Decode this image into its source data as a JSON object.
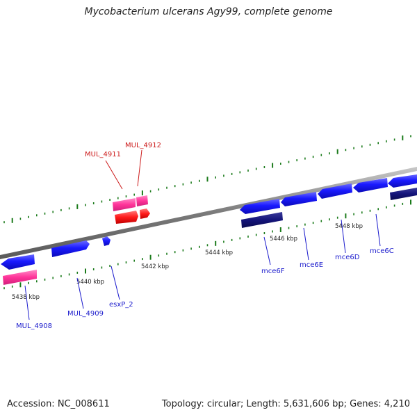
{
  "title": "Mycobacterium ulcerans Agy99, complete genome",
  "footer": {
    "accession": "Accession: NC_008611",
    "summary": "Topology: circular; Length: 5,631,606 bp; Genes: 4,210"
  },
  "colors": {
    "backbone": "#8a8a8a",
    "tick": "#1a7a1a",
    "gene_blue": "#1a1aff",
    "gene_navy": "#14147a",
    "gene_pink": "#ff3399",
    "gene_red": "#ff1a1a",
    "label_blue": "#1a1acc",
    "label_red": "#cc1a1a"
  },
  "axis_labels": [
    "5438 kbp",
    "5440 kbp",
    "5442 kbp",
    "5444 kbp",
    "5446 kbp",
    "5448 kbp"
  ],
  "gene_labels": [
    "MUL_4908",
    "MUL_4909",
    "esxP_2",
    "mce6F",
    "mce6E",
    "mce6D",
    "mce6C",
    "MUL_4911",
    "MUL_4912"
  ]
}
